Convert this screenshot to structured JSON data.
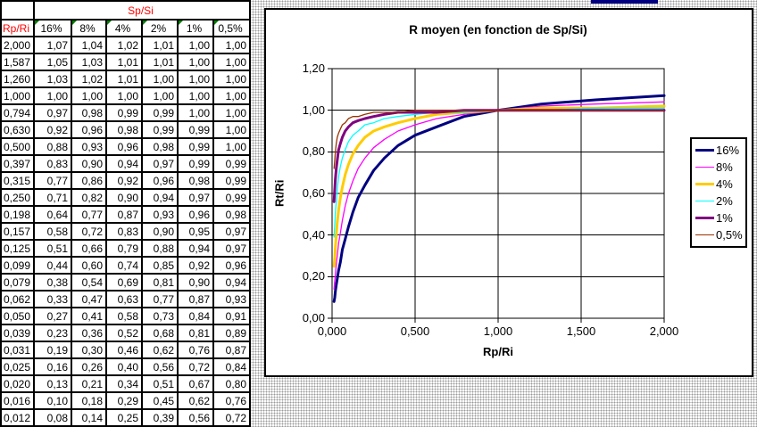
{
  "colors": {
    "header_bg": "#FFFF00",
    "header_text": "#FF0000",
    "comment_indicator": "#008000",
    "filled_cell": "#000080",
    "chart_border": "#000000",
    "grid": "#000000"
  },
  "table": {
    "corner_label": "",
    "col_group_header": "Sp/Si",
    "row_header": "Rp/Ri",
    "columns": [
      "16%",
      "8%",
      "4%",
      "2%",
      "1%",
      "0,5%"
    ],
    "rows": [
      {
        "label": "2,000",
        "values": [
          "1,07",
          "1,04",
          "1,02",
          "1,01",
          "1,00",
          "1,00"
        ]
      },
      {
        "label": "1,587",
        "values": [
          "1,05",
          "1,03",
          "1,01",
          "1,01",
          "1,00",
          "1,00"
        ]
      },
      {
        "label": "1,260",
        "values": [
          "1,03",
          "1,02",
          "1,01",
          "1,00",
          "1,00",
          "1,00"
        ]
      },
      {
        "label": "1,000",
        "values": [
          "1,00",
          "1,00",
          "1,00",
          "1,00",
          "1,00",
          "1,00"
        ]
      },
      {
        "label": "0,794",
        "values": [
          "0,97",
          "0,98",
          "0,99",
          "0,99",
          "1,00",
          "1,00"
        ]
      },
      {
        "label": "0,630",
        "values": [
          "0,92",
          "0,96",
          "0,98",
          "0,99",
          "0,99",
          "1,00"
        ]
      },
      {
        "label": "0,500",
        "values": [
          "0,88",
          "0,93",
          "0,96",
          "0,98",
          "0,99",
          "1,00"
        ]
      },
      {
        "label": "0,397",
        "values": [
          "0,83",
          "0,90",
          "0,94",
          "0,97",
          "0,99",
          "0,99"
        ]
      },
      {
        "label": "0,315",
        "values": [
          "0,77",
          "0,86",
          "0,92",
          "0,96",
          "0,98",
          "0,99"
        ]
      },
      {
        "label": "0,250",
        "values": [
          "0,71",
          "0,82",
          "0,90",
          "0,94",
          "0,97",
          "0,99"
        ]
      },
      {
        "label": "0,198",
        "values": [
          "0,64",
          "0,77",
          "0,87",
          "0,93",
          "0,96",
          "0,98"
        ]
      },
      {
        "label": "0,157",
        "values": [
          "0,58",
          "0,72",
          "0,83",
          "0,90",
          "0,95",
          "0,97"
        ]
      },
      {
        "label": "0,125",
        "values": [
          "0,51",
          "0,66",
          "0,79",
          "0,88",
          "0,94",
          "0,97"
        ]
      },
      {
        "label": "0,099",
        "values": [
          "0,44",
          "0,60",
          "0,74",
          "0,85",
          "0,92",
          "0,96"
        ]
      },
      {
        "label": "0,079",
        "values": [
          "0,38",
          "0,54",
          "0,69",
          "0,81",
          "0,90",
          "0,94"
        ]
      },
      {
        "label": "0,062",
        "values": [
          "0,33",
          "0,47",
          "0,63",
          "0,77",
          "0,87",
          "0,93"
        ]
      },
      {
        "label": "0,050",
        "values": [
          "0,27",
          "0,41",
          "0,58",
          "0,73",
          "0,84",
          "0,91"
        ]
      },
      {
        "label": "0,039",
        "values": [
          "0,23",
          "0,36",
          "0,52",
          "0,68",
          "0,81",
          "0,89"
        ]
      },
      {
        "label": "0,031",
        "values": [
          "0,19",
          "0,30",
          "0,46",
          "0,62",
          "0,76",
          "0,87"
        ]
      },
      {
        "label": "0,025",
        "values": [
          "0,16",
          "0,26",
          "0,40",
          "0,56",
          "0,72",
          "0,84"
        ]
      },
      {
        "label": "0,020",
        "values": [
          "0,13",
          "0,21",
          "0,34",
          "0,51",
          "0,67",
          "0,80"
        ]
      },
      {
        "label": "0,016",
        "values": [
          "0,10",
          "0,18",
          "0,29",
          "0,45",
          "0,62",
          "0,76"
        ]
      },
      {
        "label": "0,012",
        "values": [
          "0,08",
          "0,14",
          "0,25",
          "0,39",
          "0,56",
          "0,72"
        ]
      }
    ]
  },
  "chart_data": {
    "type": "line",
    "title": "R moyen (en fonction de Sp/Si)",
    "xlabel": "Rp/Ri",
    "ylabel": "Rt/Ri",
    "xlim": [
      0,
      2
    ],
    "ylim": [
      0,
      1.2
    ],
    "grid": true,
    "legend_position": "right",
    "x": [
      2.0,
      1.587,
      1.26,
      1.0,
      0.794,
      0.63,
      0.5,
      0.397,
      0.315,
      0.25,
      0.198,
      0.157,
      0.125,
      0.099,
      0.079,
      0.062,
      0.05,
      0.039,
      0.031,
      0.025,
      0.02,
      0.016,
      0.012
    ],
    "x_ticks": {
      "labels": [
        "0,000",
        "0,500",
        "1,000",
        "1,500",
        "2,000"
      ],
      "values": [
        0,
        0.5,
        1,
        1.5,
        2
      ]
    },
    "y_ticks": {
      "labels": [
        "0,00",
        "0,20",
        "0,40",
        "0,60",
        "0,80",
        "1,00",
        "1,20"
      ],
      "values": [
        0,
        0.2,
        0.4,
        0.6,
        0.8,
        1.0,
        1.2
      ]
    },
    "series": [
      {
        "name": "16%",
        "color": "#000080",
        "thick": true,
        "values": [
          1.07,
          1.05,
          1.03,
          1.0,
          0.97,
          0.92,
          0.88,
          0.83,
          0.77,
          0.71,
          0.64,
          0.58,
          0.51,
          0.44,
          0.38,
          0.33,
          0.27,
          0.23,
          0.19,
          0.16,
          0.13,
          0.1,
          0.08
        ]
      },
      {
        "name": "8%",
        "color": "#FF00FF",
        "thick": false,
        "values": [
          1.04,
          1.03,
          1.02,
          1.0,
          0.98,
          0.96,
          0.93,
          0.9,
          0.86,
          0.82,
          0.77,
          0.72,
          0.66,
          0.6,
          0.54,
          0.47,
          0.41,
          0.36,
          0.3,
          0.26,
          0.21,
          0.18,
          0.14
        ]
      },
      {
        "name": "4%",
        "color": "#FFCC00",
        "thick": true,
        "values": [
          1.02,
          1.01,
          1.01,
          1.0,
          0.99,
          0.98,
          0.96,
          0.94,
          0.92,
          0.9,
          0.87,
          0.83,
          0.79,
          0.74,
          0.69,
          0.63,
          0.58,
          0.52,
          0.46,
          0.4,
          0.34,
          0.29,
          0.25
        ]
      },
      {
        "name": "2%",
        "color": "#00FFFF",
        "thick": false,
        "values": [
          1.01,
          1.01,
          1.0,
          1.0,
          0.99,
          0.99,
          0.98,
          0.97,
          0.96,
          0.94,
          0.93,
          0.9,
          0.88,
          0.85,
          0.81,
          0.77,
          0.73,
          0.68,
          0.62,
          0.56,
          0.51,
          0.45,
          0.39
        ]
      },
      {
        "name": "1%",
        "color": "#800080",
        "thick": true,
        "values": [
          1.0,
          1.0,
          1.0,
          1.0,
          1.0,
          0.99,
          0.99,
          0.99,
          0.98,
          0.97,
          0.96,
          0.95,
          0.94,
          0.92,
          0.9,
          0.87,
          0.84,
          0.81,
          0.76,
          0.72,
          0.67,
          0.62,
          0.56
        ]
      },
      {
        "name": "0,5%",
        "color": "#993300",
        "thick": false,
        "values": [
          1.0,
          1.0,
          1.0,
          1.0,
          1.0,
          1.0,
          1.0,
          0.99,
          0.99,
          0.99,
          0.98,
          0.97,
          0.97,
          0.96,
          0.94,
          0.93,
          0.91,
          0.89,
          0.87,
          0.84,
          0.8,
          0.76,
          0.72
        ]
      }
    ]
  }
}
